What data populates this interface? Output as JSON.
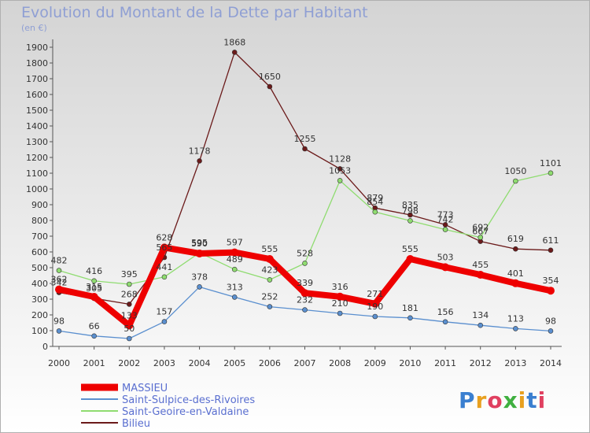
{
  "header": {
    "title": "Evolution du Montant de la Dette par Habitant",
    "subtitle": "(en €)"
  },
  "logo": {
    "text": "Proxiti"
  },
  "chart_data": {
    "type": "line",
    "title": "Evolution du Montant de la Dette par Habitant",
    "ylabel": "(en €)",
    "xlabel": "",
    "x": [
      "2000",
      "2001",
      "2002",
      "2003",
      "2004",
      "2005",
      "2006",
      "2007",
      "2008",
      "2009",
      "2010",
      "2011",
      "2012",
      "2013",
      "2014"
    ],
    "ylim": [
      0,
      1900
    ],
    "yticks": [
      0,
      100,
      200,
      300,
      400,
      500,
      600,
      700,
      800,
      900,
      1000,
      1100,
      1200,
      1300,
      1400,
      1500,
      1600,
      1700,
      1800,
      1900
    ],
    "grid": false,
    "legend": "bottom-left",
    "series": [
      {
        "name": "Bilieu",
        "color": "#6b1a1a",
        "values": [
          342,
          305,
          268,
          565,
          1178,
          1868,
          1650,
          1255,
          1128,
          879,
          835,
          773,
          667,
          619,
          611
        ]
      },
      {
        "name": "Saint-Geoire-en-Valdaine",
        "color": "#8fdc70",
        "values": [
          482,
          416,
          395,
          441,
          595,
          489,
          423,
          528,
          1053,
          854,
          798,
          742,
          692,
          1050,
          1101
        ]
      },
      {
        "name": "Saint-Sulpice-des-Rivoires",
        "color": "#5a8fcf",
        "values": [
          98,
          66,
          50,
          157,
          378,
          313,
          252,
          232,
          210,
          190,
          181,
          156,
          134,
          113,
          98
        ]
      },
      {
        "name": "MASSIEU",
        "color": "#ee0000",
        "values": [
          362,
          315,
          133,
          628,
          590,
          597,
          555,
          339,
          316,
          271,
          555,
          503,
          455,
          401,
          354
        ]
      }
    ]
  }
}
